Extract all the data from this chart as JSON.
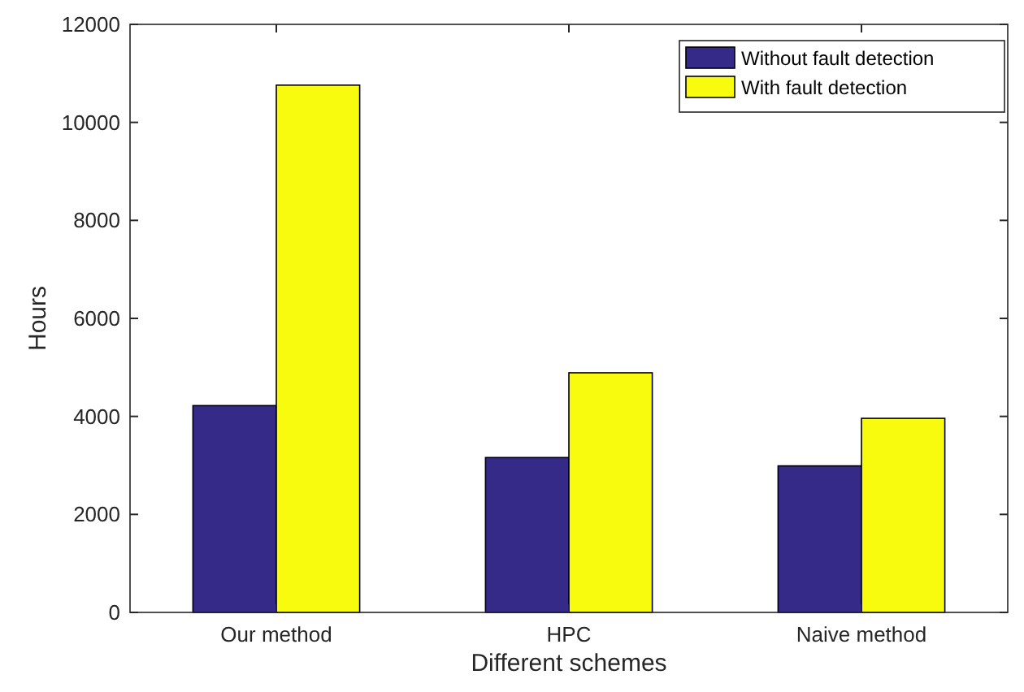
{
  "chart_data": {
    "type": "bar",
    "xlabel": "Different schemes",
    "ylabel": "Hours",
    "categories": [
      "Our method",
      "HPC",
      "Naive method"
    ],
    "series": [
      {
        "name": "Without fault detection",
        "color": "#352a87",
        "values": [
          4220,
          3160,
          2990
        ]
      },
      {
        "name": "With fault detection",
        "color": "#f9fb0e",
        "values": [
          10760,
          4890,
          3960
        ]
      }
    ],
    "ylim": [
      0,
      12000
    ],
    "yticks": [
      0,
      2000,
      4000,
      6000,
      8000,
      10000,
      12000
    ],
    "grid": false,
    "legend": "top right"
  }
}
